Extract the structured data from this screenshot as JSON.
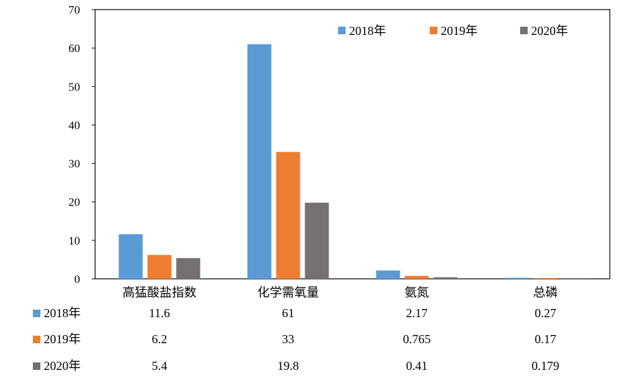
{
  "chart_data": {
    "type": "bar",
    "categories": [
      "高猛酸盐指数",
      "化学需氧量",
      "氨氮",
      "总磷"
    ],
    "series": [
      {
        "name": "2018年",
        "values": [
          11.6,
          61,
          2.17,
          0.27
        ],
        "labels": [
          "11.6",
          "61",
          "2.17",
          "0.27"
        ],
        "color": "#5B9BD5"
      },
      {
        "name": "2019年",
        "values": [
          6.2,
          33,
          0.765,
          0.17
        ],
        "labels": [
          "6.2",
          "33",
          "0.765",
          "0.17"
        ],
        "color": "#ED7D31"
      },
      {
        "name": "2020年",
        "values": [
          5.4,
          19.8,
          0.41,
          0.179
        ],
        "labels": [
          "5.4",
          "19.8",
          "0.41",
          "0.179"
        ],
        "color": "#767171"
      }
    ],
    "ylim": [
      0,
      70
    ],
    "yticks": [
      "0",
      "10",
      "20",
      "30",
      "40",
      "50",
      "60",
      "70"
    ],
    "grid": false,
    "legend": "top-right",
    "data_table": true
  }
}
